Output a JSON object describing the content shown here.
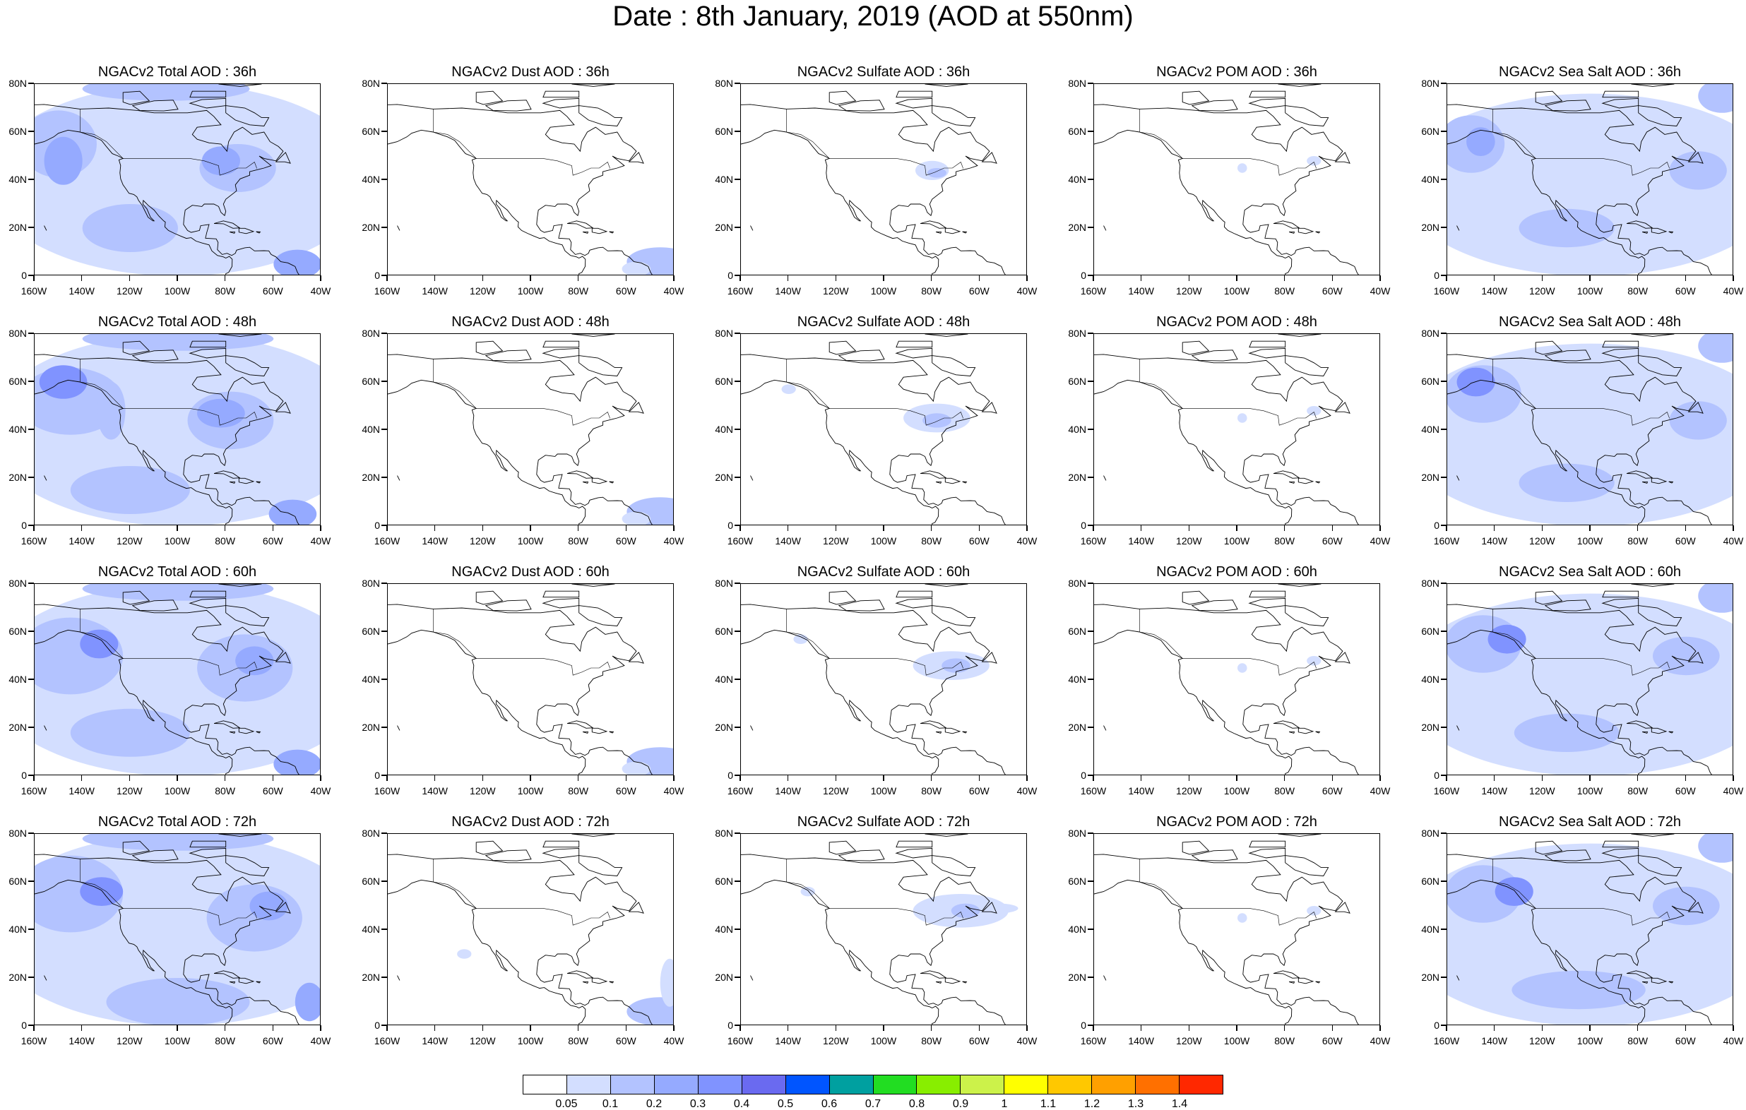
{
  "title": "Date : 8th January, 2019 (AOD at 550nm)",
  "lat_labels": [
    "80N",
    "60N",
    "40N",
    "20N",
    "0"
  ],
  "lon_labels": [
    "160W",
    "140W",
    "120W",
    "100W",
    "80W",
    "60W",
    "40W"
  ],
  "panel_titles": [
    [
      "NGACv2 Total AOD : 36h",
      "NGACv2 Dust AOD : 36h",
      "NGACv2 Sulfate AOD : 36h",
      "NGACv2 POM AOD : 36h",
      "NGACv2 Sea Salt AOD : 36h"
    ],
    [
      "NGACv2 Total AOD : 48h",
      "NGACv2 Dust AOD : 48h",
      "NGACv2 Sulfate AOD : 48h",
      "NGACv2 POM AOD : 48h",
      "NGACv2 Sea Salt AOD : 48h"
    ],
    [
      "NGACv2 Total AOD : 60h",
      "NGACv2 Dust AOD : 60h",
      "NGACv2 Sulfate AOD : 60h",
      "NGACv2 POM AOD : 60h",
      "NGACv2 Sea Salt AOD : 60h"
    ],
    [
      "NGACv2 Total AOD : 72h",
      "NGACv2 Dust AOD : 72h",
      "NGACv2 Sulfate AOD : 72h",
      "NGACv2 POM AOD : 72h",
      "NGACv2 Sea Salt  AOD : 72h"
    ]
  ],
  "colorbar": {
    "labels": [
      "0.05",
      "0.1",
      "0.2",
      "0.3",
      "0.4",
      "0.5",
      "0.6",
      "0.7",
      "0.8",
      "0.9",
      "1",
      "1.1",
      "1.2",
      "1.3",
      "1.4"
    ],
    "colors": [
      "#ffffff",
      "#d3deff",
      "#b3c3ff",
      "#95aaff",
      "#8093ff",
      "#6a6af0",
      "#0055ff",
      "#00a0a0",
      "#22dd22",
      "#88ee00",
      "#ccf24a",
      "#ffff00",
      "#ffc800",
      "#ffa000",
      "#ff7000",
      "#ff2800"
    ]
  },
  "map_style": {
    "coast_color": "#000000",
    "aod_light": "#d3deff",
    "aod_medium": "#b3c3ff",
    "aod_strong": "#95aaff",
    "aod_peak": "#8093ff"
  }
}
